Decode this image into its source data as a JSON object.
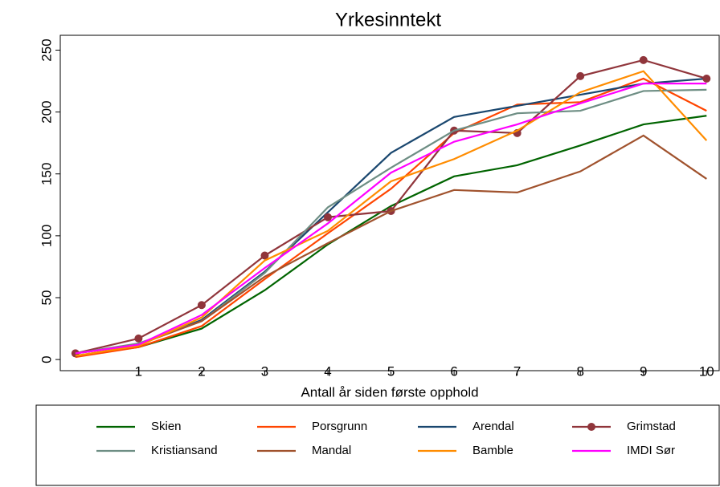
{
  "chart_data": {
    "type": "line",
    "title": "Yrkesinntekt",
    "x_label": "Antall år siden første opphold",
    "x": [
      0,
      1,
      2,
      3,
      4,
      5,
      6,
      7,
      8,
      9,
      10
    ],
    "xlim": [
      -0.24,
      10.2
    ],
    "xticks": [
      1,
      2,
      3,
      4,
      5,
      6,
      7,
      8,
      9,
      10
    ],
    "ylim": [
      -9,
      262
    ],
    "yticks": [
      0,
      50,
      100,
      150,
      200,
      250
    ],
    "series": [
      {
        "name": "Skien",
        "color": "#006400",
        "values": [
          3,
          10,
          25,
          56,
          93,
          124,
          148,
          157,
          173,
          190,
          197
        ]
      },
      {
        "name": "Porsgrunn",
        "color": "#ff4500",
        "values": [
          2,
          10,
          27,
          65,
          102,
          138,
          183,
          206,
          208,
          227,
          201
        ]
      },
      {
        "name": "Arendal",
        "color": "#1a476f",
        "values": [
          5,
          12,
          32,
          71,
          119,
          167,
          196,
          205,
          214,
          223,
          227
        ]
      },
      {
        "name": "Grimstad",
        "color": "#90353b",
        "marker": "circle",
        "values": [
          5,
          17,
          44,
          84,
          115,
          120,
          185,
          183,
          229,
          242,
          227
        ]
      },
      {
        "name": "Kristiansand",
        "color": "#6e8e84",
        "values": [
          5,
          13,
          31,
          70,
          123,
          155,
          185,
          199,
          201,
          217,
          218
        ]
      },
      {
        "name": "Mandal",
        "color": "#a0522d",
        "values": [
          5,
          12,
          31,
          67,
          94,
          120,
          137,
          135,
          152,
          181,
          146
        ]
      },
      {
        "name": "Bamble",
        "color": "#ff8c00",
        "values": [
          3,
          11,
          34,
          80,
          104,
          144,
          162,
          185,
          216,
          233,
          177
        ]
      },
      {
        "name": "IMDI Sør",
        "color": "#ff00ff",
        "values": [
          5,
          12,
          36,
          74,
          110,
          151,
          176,
          190,
          207,
          223,
          223
        ]
      }
    ]
  }
}
